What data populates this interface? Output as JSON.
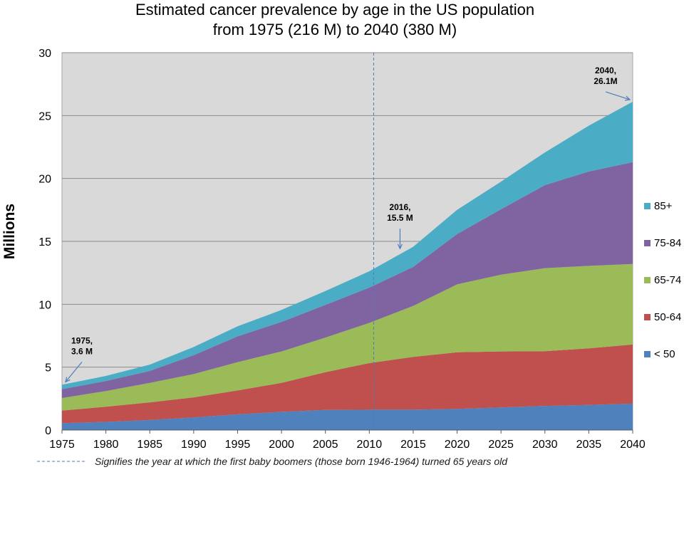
{
  "chart_data": {
    "type": "area",
    "stacked": true,
    "title_line1": "Estimated cancer prevalence by age in the US population",
    "title_line2": "from 1975 (216 M) to 2040 (380 M)",
    "ylabel": "Millions",
    "xlabel": "",
    "xlim": [
      1975,
      2040
    ],
    "ylim": [
      0,
      30
    ],
    "x_ticks": [
      "1975",
      "1980",
      "1985",
      "1990",
      "1995",
      "2000",
      "2005",
      "2010",
      "2015",
      "2020",
      "2025",
      "2030",
      "2035",
      "2040"
    ],
    "y_ticks": [
      "0",
      "5",
      "10",
      "15",
      "20",
      "25",
      "30"
    ],
    "grid": "horizontal",
    "background": "#d9d9d9",
    "x": [
      1975,
      1980,
      1985,
      1990,
      1995,
      2000,
      2005,
      2010,
      2015,
      2020,
      2025,
      2030,
      2035,
      2040
    ],
    "series": [
      {
        "name": "< 50",
        "color": "#4f81bd",
        "values": [
          0.55,
          0.65,
          0.8,
          1.0,
          1.25,
          1.45,
          1.6,
          1.62,
          1.62,
          1.68,
          1.8,
          1.92,
          2.0,
          2.1
        ]
      },
      {
        "name": "50-64",
        "color": "#c0504d",
        "values": [
          1.0,
          1.2,
          1.4,
          1.6,
          1.9,
          2.3,
          3.0,
          3.7,
          4.2,
          4.5,
          4.45,
          4.35,
          4.5,
          4.7
        ]
      },
      {
        "name": "65-74",
        "color": "#9bbb59",
        "values": [
          1.0,
          1.25,
          1.55,
          1.85,
          2.25,
          2.5,
          2.75,
          3.2,
          4.05,
          5.4,
          6.1,
          6.6,
          6.55,
          6.4
        ]
      },
      {
        "name": "75-84",
        "color": "#8064a2",
        "values": [
          0.7,
          0.8,
          0.95,
          1.5,
          2.05,
          2.35,
          2.6,
          2.8,
          3.1,
          4.0,
          5.2,
          6.6,
          7.5,
          8.1
        ]
      },
      {
        "name": "85+",
        "color": "#4bacc6",
        "values": [
          0.35,
          0.4,
          0.5,
          0.65,
          0.8,
          0.95,
          1.1,
          1.3,
          1.6,
          1.92,
          2.2,
          2.6,
          3.65,
          4.8
        ]
      }
    ],
    "legend_position": "right",
    "legend_order": [
      "85+",
      "75-84",
      "65-74",
      "50-64",
      "< 50"
    ],
    "reference_line": {
      "x": 2010.5,
      "style": "dashed",
      "color": "#4a7ebb"
    },
    "annotations": [
      {
        "lines": [
          "1975,",
          "3.6 M"
        ],
        "x": 1975,
        "y": 3.6
      },
      {
        "lines": [
          "2016,",
          "15.5 M"
        ],
        "x": 2013.5,
        "y": 14.2
      },
      {
        "lines": [
          "2040,",
          "26.1M"
        ],
        "x": 2040,
        "y": 26.1
      }
    ],
    "footnote": "Signifies the year at which the first baby boomers (those born 1946-1964) turned 65 years old"
  }
}
